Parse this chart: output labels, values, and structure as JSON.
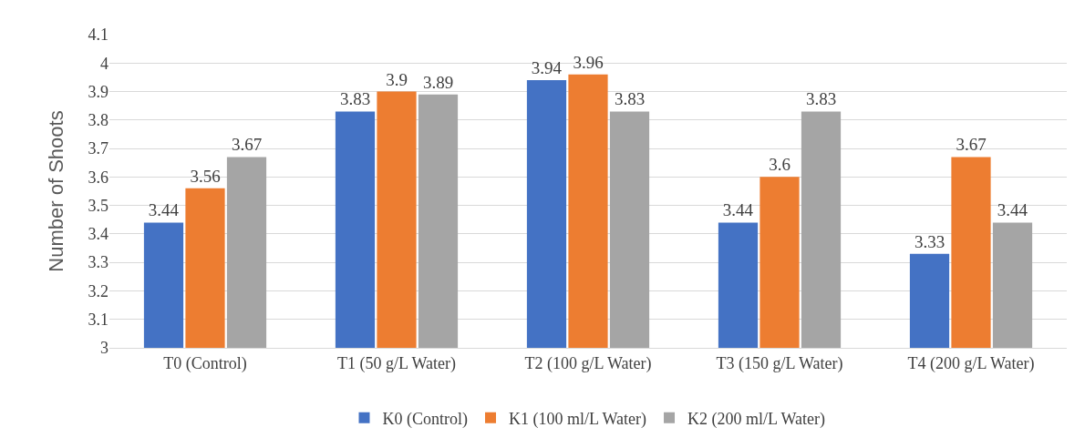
{
  "chart_data": {
    "type": "bar",
    "ylabel": "Number of Shoots",
    "categories": [
      "T0 (Control)",
      "T1 (50 g/L Water)",
      "T2 (100 g/L Water)",
      "T3 (150 g/L Water)",
      "T4 (200 g/L Water)"
    ],
    "series": [
      {
        "name": "K0 (Control)",
        "color": "#4472c4",
        "values": [
          3.44,
          3.83,
          3.94,
          3.44,
          3.33
        ]
      },
      {
        "name": "K1 (100 ml/L Water)",
        "color": "#ed7d31",
        "values": [
          3.56,
          3.9,
          3.96,
          3.6,
          3.67
        ]
      },
      {
        "name": "K2 (200 ml/L Water)",
        "color": "#a5a5a5",
        "values": [
          3.67,
          3.89,
          3.83,
          3.83,
          3.44
        ]
      }
    ],
    "ylim": [
      3,
      4.1
    ],
    "yticks": [
      3,
      3.1,
      3.2,
      3.3,
      3.4,
      3.5,
      3.6,
      3.7,
      3.8,
      3.9,
      4,
      4.1
    ],
    "grid": "y",
    "legend": "bottom",
    "data_labels": true
  }
}
